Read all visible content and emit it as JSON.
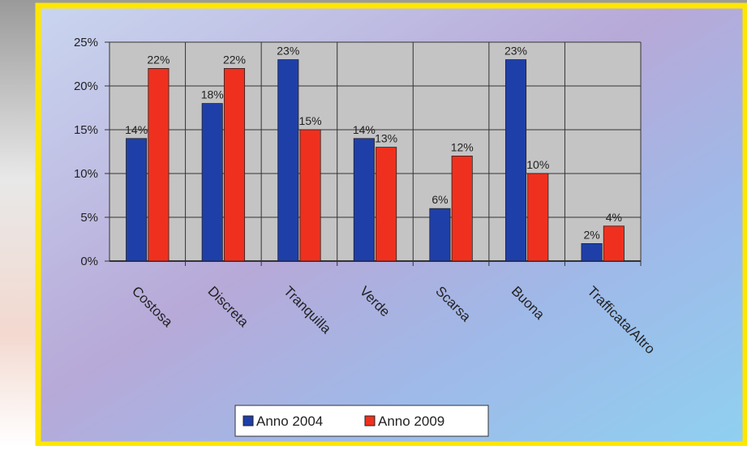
{
  "chart_data": {
    "type": "bar",
    "categories": [
      "Costosa",
      "Discreta",
      "Tranquilla",
      "Verde",
      "Scarsa",
      "Buona",
      "Trafficata/Altro"
    ],
    "series": [
      {
        "name": "Anno 2004",
        "color": "#1f3fa8",
        "values": [
          14,
          18,
          23,
          14,
          6,
          23,
          2
        ],
        "value_labels": [
          "14%",
          "18%",
          "23%",
          "14%",
          "6%",
          "23%",
          "2%"
        ]
      },
      {
        "name": "Anno 2009",
        "color": "#f0301e",
        "values": [
          22,
          22,
          15,
          13,
          12,
          10,
          4
        ],
        "value_labels": [
          "22%",
          "22%",
          "15%",
          "13%",
          "12%",
          "10%",
          "4%"
        ]
      }
    ],
    "ylim": [
      0,
      25
    ],
    "yticks": [
      {
        "value": 0,
        "label": "0%"
      },
      {
        "value": 5,
        "label": "5%"
      },
      {
        "value": 10,
        "label": "10%"
      },
      {
        "value": 15,
        "label": "15%"
      },
      {
        "value": 20,
        "label": "20%"
      },
      {
        "value": 25,
        "label": "25%"
      }
    ],
    "grid": true,
    "legend": "bottom"
  }
}
